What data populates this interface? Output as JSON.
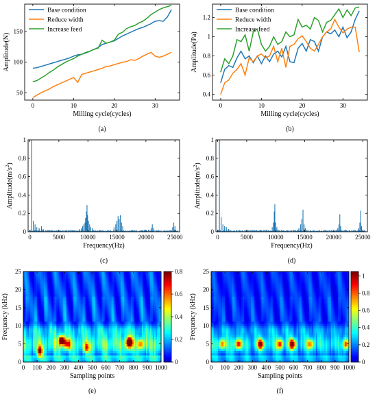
{
  "chart_data": [
    {
      "id": "a",
      "type": "line",
      "caption": "(a)",
      "xlabel": "Milling cycle(cycles)",
      "ylabel": "Amplitude(N)",
      "xlim": [
        -2,
        36
      ],
      "ylim": [
        38,
        195
      ],
      "xticks": [
        0,
        10,
        20,
        30
      ],
      "yticks": [
        50,
        100,
        150
      ],
      "legend_position": "top-left",
      "x": [
        0,
        1,
        2,
        3,
        4,
        5,
        6,
        7,
        8,
        9,
        10,
        11,
        12,
        13,
        14,
        15,
        16,
        17,
        18,
        19,
        20,
        21,
        22,
        23,
        24,
        25,
        26,
        27,
        28,
        29,
        30,
        31,
        32,
        33,
        34
      ],
      "series": [
        {
          "name": "Base condition",
          "color": "#1f77b4",
          "values": [
            90,
            91,
            93,
            95,
            97,
            99,
            101,
            103,
            105,
            107,
            110,
            112,
            113,
            115,
            118,
            121,
            124,
            129,
            131,
            133,
            135,
            139,
            143,
            146,
            149,
            152,
            155,
            157,
            160,
            163,
            167,
            168,
            167,
            174,
            186
          ]
        },
        {
          "name": "Reduce width",
          "color": "#ff7f0e",
          "values": [
            42,
            46,
            50,
            53,
            56,
            60,
            63,
            66,
            69,
            72,
            75,
            67,
            80,
            82,
            84,
            86,
            88,
            90,
            93,
            94,
            96,
            98,
            100,
            101,
            104,
            103,
            106,
            110,
            113,
            116,
            110,
            108,
            110,
            113,
            116
          ]
        },
        {
          "name": "Increase feed",
          "color": "#2ca02c",
          "values": [
            68,
            70,
            74,
            78,
            83,
            87,
            92,
            96,
            100,
            103,
            106,
            110,
            113,
            116,
            118,
            121,
            123,
            136,
            131,
            133,
            136,
            146,
            149,
            155,
            158,
            160,
            164,
            167,
            172,
            178,
            182,
            186,
            189,
            191,
            193
          ]
        }
      ]
    },
    {
      "id": "b",
      "type": "line",
      "caption": "(b)",
      "xlabel": "Milling cycle(cycles)",
      "ylabel": "Amplitude(Pa)",
      "xlim": [
        -2,
        36
      ],
      "ylim": [
        0.34,
        1.34
      ],
      "xticks": [
        0,
        10,
        20,
        30
      ],
      "yticks": [
        0.4,
        0.6,
        0.8,
        1.0,
        1.2
      ],
      "legend_position": "top-left",
      "x": [
        0,
        1,
        2,
        3,
        4,
        5,
        6,
        7,
        8,
        9,
        10,
        11,
        12,
        13,
        14,
        15,
        16,
        17,
        18,
        19,
        20,
        21,
        22,
        23,
        24,
        25,
        26,
        27,
        28,
        29,
        30,
        31,
        32,
        33,
        34
      ],
      "series": [
        {
          "name": "Base condition",
          "color": "#1f77b4",
          "values": [
            0.52,
            0.66,
            0.7,
            0.68,
            0.78,
            0.85,
            0.77,
            0.8,
            0.73,
            0.8,
            0.72,
            0.8,
            0.74,
            0.82,
            0.85,
            0.79,
            0.9,
            0.74,
            0.73,
            0.88,
            0.93,
            0.85,
            0.97,
            0.95,
            0.85,
            1.0,
            1.05,
            1.03,
            1.07,
            1.0,
            1.1,
            0.99,
            1.05,
            1.18,
            1.27
          ]
        },
        {
          "name": "Reduce width",
          "color": "#ff7f0e",
          "values": [
            0.4,
            0.52,
            0.55,
            0.62,
            0.66,
            0.72,
            0.6,
            0.78,
            0.74,
            0.8,
            0.82,
            0.78,
            0.8,
            0.9,
            0.74,
            0.88,
            0.68,
            0.9,
            0.92,
            0.98,
            1.01,
            0.95,
            0.88,
            0.85,
            0.92,
            1.0,
            1.05,
            1.08,
            1.18,
            1.1,
            1.04,
            1.08,
            1.1,
            1.1,
            0.84
          ]
        },
        {
          "name": "Increase feed",
          "color": "#2ca02c",
          "values": [
            0.63,
            0.77,
            0.72,
            0.8,
            0.97,
            0.95,
            1.02,
            0.85,
            1.05,
            1.08,
            0.92,
            0.85,
            0.9,
            1.0,
            0.92,
            0.95,
            1.05,
            1.0,
            1.02,
            1.18,
            1.1,
            1.12,
            1.08,
            1.2,
            1.17,
            1.05,
            1.15,
            1.17,
            1.23,
            1.29,
            1.2,
            1.28,
            1.22,
            1.3,
            1.31
          ]
        }
      ]
    },
    {
      "id": "c",
      "type": "bar",
      "caption": "(c)",
      "xlabel": "Frequency(Hz)",
      "ylabel": "Amplitude(m/s",
      "ylabel_sup": "2",
      "ylabel_end": ")",
      "xlim": [
        -300,
        25800
      ],
      "ylim": [
        0,
        1.0
      ],
      "xticks": [
        0,
        5000,
        10000,
        15000,
        20000,
        25000
      ],
      "yticks": [
        0.0,
        0.2,
        0.4,
        0.6,
        0.8,
        1.0
      ],
      "color": "#1f77b4",
      "peaks": [
        [
          300,
          1.0
        ],
        [
          600,
          0.12
        ],
        [
          900,
          0.08
        ],
        [
          1200,
          0.05
        ],
        [
          1600,
          0.04
        ],
        [
          2000,
          0.06
        ],
        [
          2300,
          0.03
        ],
        [
          8600,
          0.03
        ],
        [
          8900,
          0.04
        ],
        [
          9100,
          0.06
        ],
        [
          9300,
          0.08
        ],
        [
          9500,
          0.1
        ],
        [
          9600,
          0.15
        ],
        [
          9750,
          0.22
        ],
        [
          9850,
          0.29
        ],
        [
          9950,
          0.18
        ],
        [
          10100,
          0.12
        ],
        [
          10300,
          0.08
        ],
        [
          10500,
          0.05
        ],
        [
          10800,
          0.04
        ],
        [
          14500,
          0.05
        ],
        [
          14800,
          0.08
        ],
        [
          15000,
          0.12
        ],
        [
          15200,
          0.17
        ],
        [
          15400,
          0.14
        ],
        [
          15600,
          0.18
        ],
        [
          15800,
          0.1
        ],
        [
          16000,
          0.06
        ],
        [
          20900,
          0.04
        ],
        [
          21100,
          0.08
        ],
        [
          21300,
          0.04
        ],
        [
          24600,
          0.05
        ],
        [
          24800,
          0.1
        ],
        [
          25000,
          0.06
        ]
      ]
    },
    {
      "id": "d",
      "type": "bar",
      "caption": "(d)",
      "xlabel": "Frequency(Hz)",
      "ylabel": "Amplitude(m/s",
      "ylabel_sup": "2",
      "ylabel_end": ")",
      "xlim": [
        -300,
        25800
      ],
      "ylim": [
        0,
        1.0
      ],
      "xticks": [
        0,
        5000,
        10000,
        15000,
        20000,
        25000
      ],
      "yticks": [
        0.0,
        0.2,
        0.4,
        0.6,
        0.8,
        1.0
      ],
      "color": "#1f77b4",
      "peaks": [
        [
          300,
          1.0
        ],
        [
          600,
          0.16
        ],
        [
          900,
          0.08
        ],
        [
          1200,
          0.06
        ],
        [
          1500,
          0.05
        ],
        [
          1900,
          0.03
        ],
        [
          9400,
          0.05
        ],
        [
          9600,
          0.1
        ],
        [
          9750,
          0.22
        ],
        [
          9850,
          0.3
        ],
        [
          10000,
          0.1
        ],
        [
          10200,
          0.05
        ],
        [
          14000,
          0.04
        ],
        [
          14300,
          0.08
        ],
        [
          14500,
          0.14
        ],
        [
          14700,
          0.24
        ],
        [
          14900,
          0.08
        ],
        [
          15100,
          0.04
        ],
        [
          20700,
          0.04
        ],
        [
          20900,
          0.08
        ],
        [
          21050,
          0.19
        ],
        [
          21200,
          0.06
        ],
        [
          24300,
          0.04
        ],
        [
          24500,
          0.1
        ],
        [
          24650,
          0.23
        ],
        [
          24800,
          0.06
        ]
      ]
    },
    {
      "id": "e",
      "type": "heatmap",
      "caption": "(e)",
      "xlabel": "Sampling points",
      "ylabel": "Frequency (kHz)",
      "xlim": [
        0,
        1000
      ],
      "ylim": [
        0,
        25
      ],
      "xticks": [
        0,
        100,
        200,
        300,
        400,
        500,
        600,
        700,
        800,
        900,
        1000
      ],
      "yticks": [
        0,
        5,
        10,
        15,
        20,
        25
      ],
      "colorbar_ticks": [
        0.0,
        0.2,
        0.4,
        0.6,
        0.8
      ],
      "vmax": 0.8,
      "hotspots": [
        {
          "x": 120,
          "y": 3,
          "v": 0.55
        },
        {
          "x": 280,
          "y": 6,
          "v": 0.75
        },
        {
          "x": 320,
          "y": 5,
          "v": 0.45
        },
        {
          "x": 460,
          "y": 4,
          "v": 0.35
        },
        {
          "x": 770,
          "y": 5.5,
          "v": 0.8
        },
        {
          "x": 850,
          "y": 5,
          "v": 0.35
        }
      ]
    },
    {
      "id": "f",
      "type": "heatmap",
      "caption": "(f)",
      "xlabel": "Sampling points",
      "ylabel": "Frequency (kHz)",
      "xlim": [
        0,
        1000
      ],
      "ylim": [
        0,
        25
      ],
      "xticks": [
        0,
        100,
        200,
        300,
        400,
        500,
        600,
        700,
        800,
        900,
        1000
      ],
      "yticks": [
        0,
        5,
        10,
        15,
        20,
        25
      ],
      "colorbar_ticks": [
        0.0,
        0.2,
        0.4,
        0.6,
        0.8,
        1.0
      ],
      "vmax": 1.05,
      "hotspots": [
        {
          "x": 80,
          "y": 5,
          "v": 0.55
        },
        {
          "x": 200,
          "y": 5,
          "v": 0.7
        },
        {
          "x": 360,
          "y": 5,
          "v": 0.85
        },
        {
          "x": 500,
          "y": 5,
          "v": 0.6
        },
        {
          "x": 590,
          "y": 5,
          "v": 0.9
        },
        {
          "x": 720,
          "y": 5,
          "v": 0.5
        },
        {
          "x": 980,
          "y": 5,
          "v": 0.55
        }
      ]
    }
  ]
}
